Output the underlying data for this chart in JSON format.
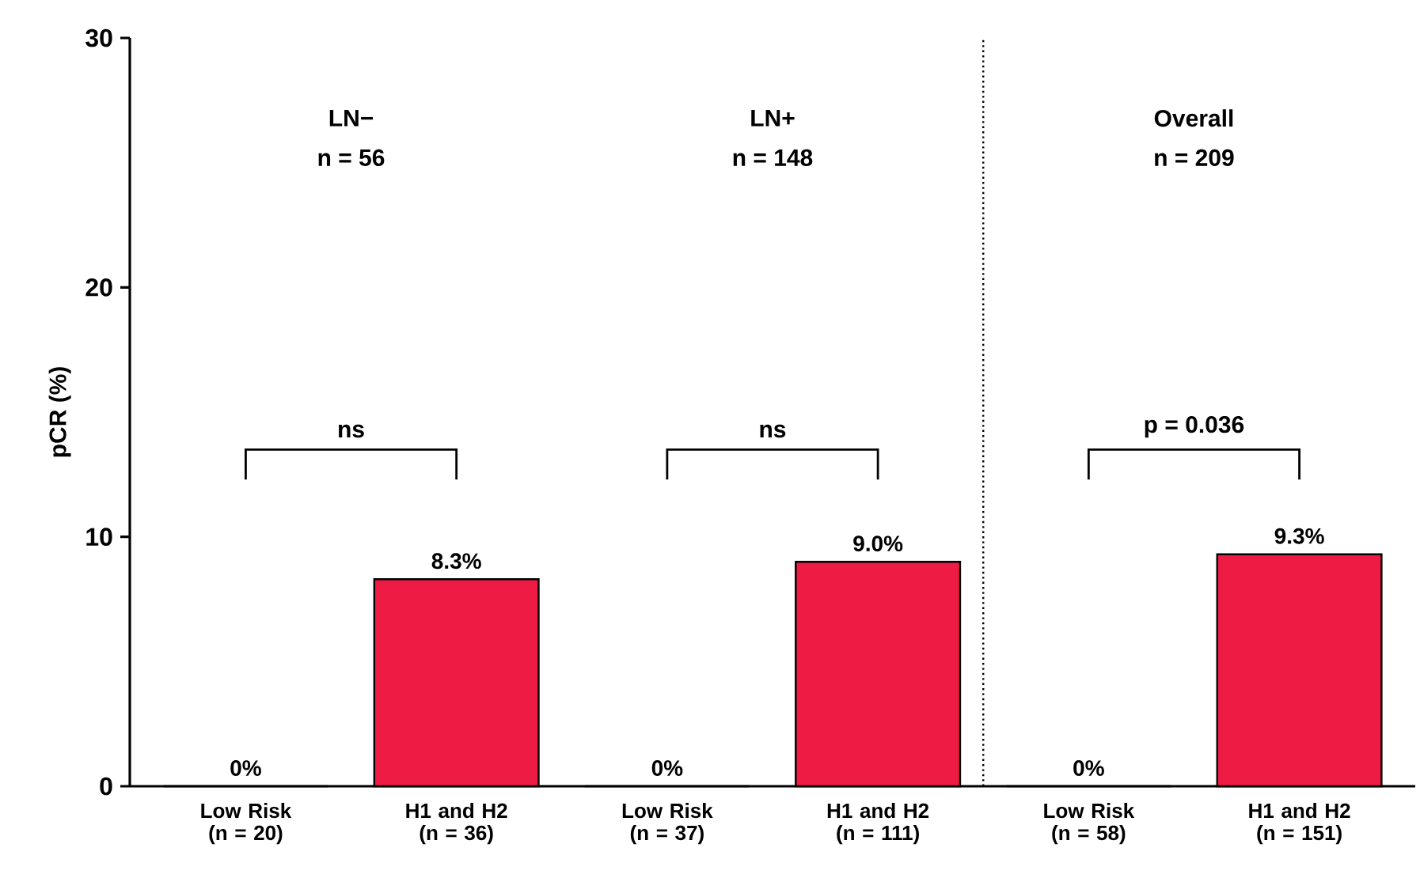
{
  "chart_data": {
    "type": "bar",
    "ylabel": "pCR  (%)",
    "categories": [
      "Low Risk (n = 20)",
      "H1 and H2 (n = 36)",
      "Low Risk (n = 37)",
      "H1 and H2 (n = 111)",
      "Low Risk (n = 58)",
      "H1 and H2 (n = 151)"
    ],
    "values": [
      0,
      8.3,
      0,
      9.0,
      0,
      9.3
    ],
    "value_labels": [
      "0%",
      "8.3%",
      "0%",
      "9.0%",
      "0%",
      "9.3%"
    ],
    "colors": [
      "#ee1b45",
      "#ee1b45",
      "#ee1b45",
      "#ee1b45",
      "#ee1b45",
      "#ee1b45"
    ],
    "ylim": [
      0,
      30
    ],
    "yticks": [
      0,
      10,
      20,
      30
    ],
    "annotations": [
      "LN−",
      "n = 56",
      "LN+",
      "n = 148",
      "Overall",
      "n = 209",
      "ns",
      "ns",
      "p = 0.036"
    ]
  }
}
